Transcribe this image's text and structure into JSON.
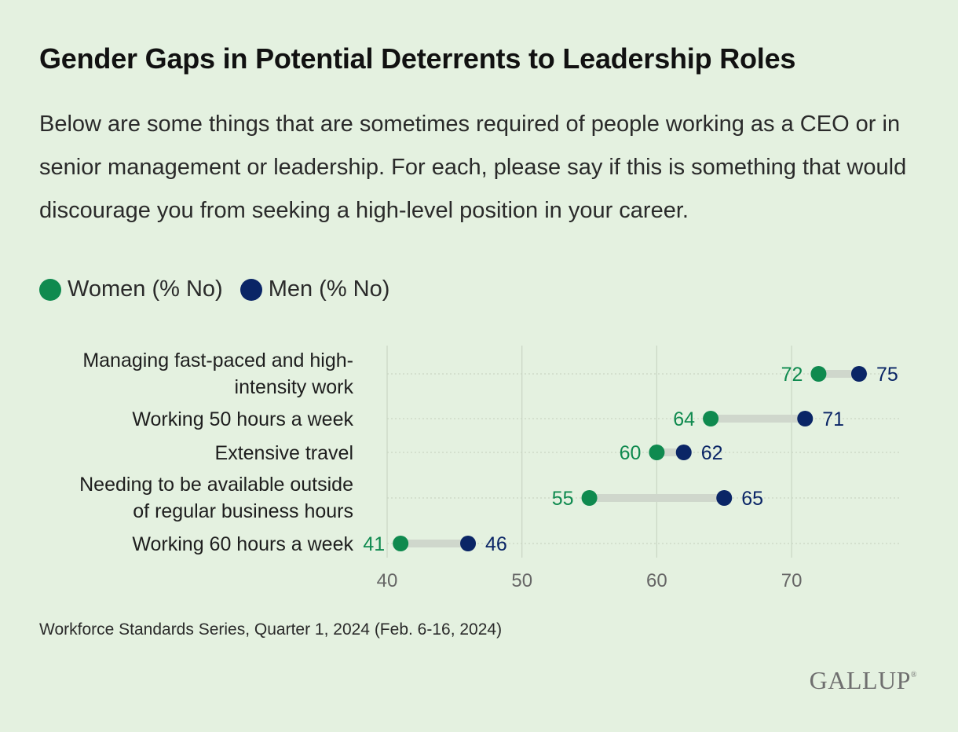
{
  "title": "Gender Gaps in Potential Deterrents to Leadership Roles",
  "subtitle": "Below are some things that are sometimes required of people working as a CEO or in senior management or leadership. For each, please say if this is something that would discourage you from seeking a high-level position in your career.",
  "source": "Workforce Standards Series, Quarter 1, 2024 (Feb. 6-16, 2024)",
  "logo": "GALLUP",
  "logo_mark": "®",
  "colors": {
    "women": "#0f8a4f",
    "men": "#0a2566",
    "connector": "#cfd7cc",
    "grid": "#c9d6c4",
    "tick": "#666666"
  },
  "chart_data": {
    "type": "dumbbell",
    "title": "Gender Gaps in Potential Deterrents to Leadership Roles",
    "xlabel": "",
    "ylabel": "",
    "xlim": [
      37.5,
      78.5
    ],
    "x_ticks": [
      40,
      50,
      60,
      70
    ],
    "grid": true,
    "legend_placement": "top-left",
    "categories": [
      [
        "Managing fast-paced and high-",
        "intensity work"
      ],
      [
        "Working 50 hours a week"
      ],
      [
        "Extensive travel"
      ],
      [
        "Needing to be available outside",
        "of regular business hours"
      ],
      [
        "Working 60 hours a week"
      ]
    ],
    "series": [
      {
        "name": "Women (% No)",
        "values": [
          72,
          64,
          60,
          55,
          41
        ]
      },
      {
        "name": "Men (% No)",
        "values": [
          75,
          71,
          62,
          65,
          46
        ]
      }
    ]
  }
}
